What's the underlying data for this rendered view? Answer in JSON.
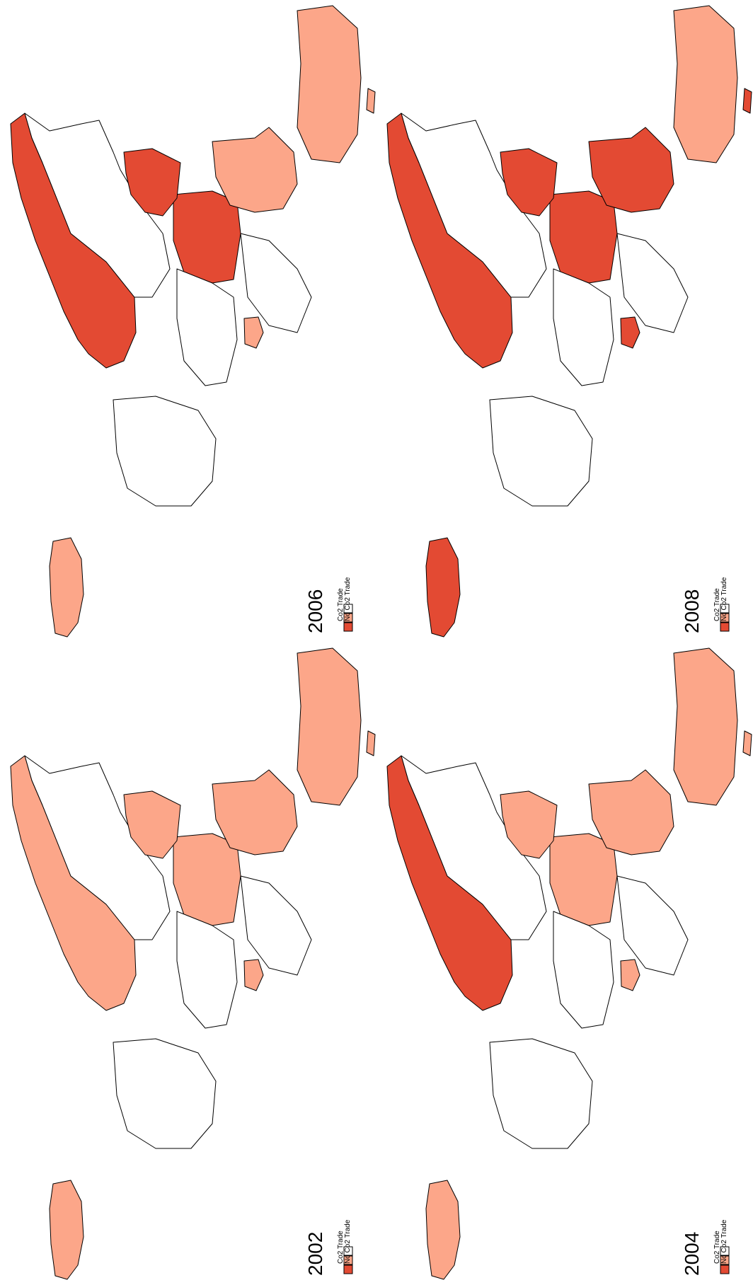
{
  "legend_colors": [
    "#e34a33",
    "#fca689",
    "#ffffff"
  ],
  "panels": [
    {
      "year": "2006",
      "legend": [
        "Co2 Trade",
        "No Co2 Trade"
      ]
    },
    {
      "year": "2008",
      "legend": [
        "Co2 Trade",
        "No Co2 Trade"
      ]
    },
    {
      "year": "2002",
      "legend": [
        "Co2 Trade",
        "No Co2 Trade"
      ]
    },
    {
      "year": "2004",
      "legend": [
        "Co2 Trade",
        "No Co2 Trade"
      ]
    }
  ]
}
